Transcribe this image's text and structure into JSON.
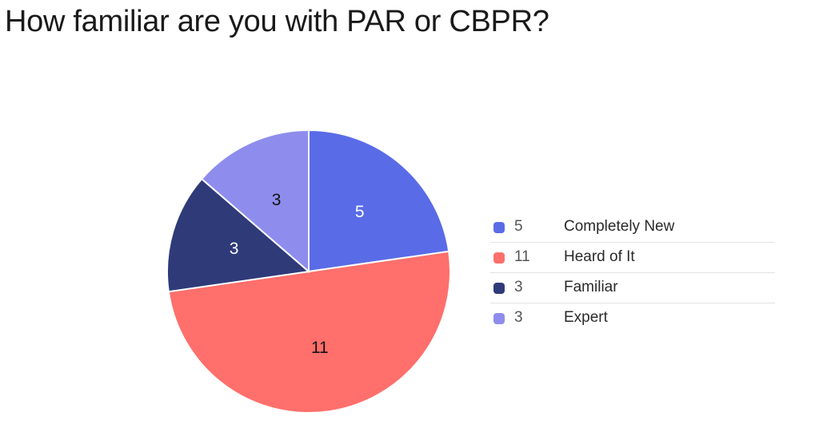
{
  "title": "How familiar are you with PAR or CBPR?",
  "chart_data": {
    "type": "pie",
    "title": "How familiar are you with PAR or CBPR?",
    "categories": [
      "Completely New",
      "Heard of It",
      "Familiar",
      "Expert"
    ],
    "values": [
      5,
      11,
      3,
      3
    ],
    "colors": [
      "#5a6be8",
      "#ff6f6b",
      "#2f3a79",
      "#8e8ded"
    ],
    "label_colors": [
      "#ffffff",
      "#111111",
      "#ffffff",
      "#111111"
    ],
    "legend_position": "right"
  }
}
